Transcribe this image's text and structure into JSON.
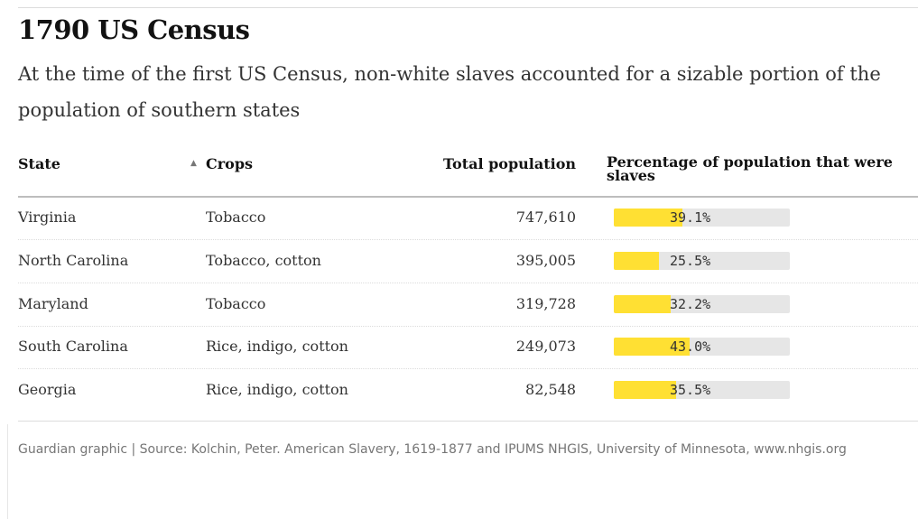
{
  "title": "1790 US Census",
  "subtitle": "At the time of the first US Census, non-white slaves accounted for a sizable portion of the population of southern states",
  "table": {
    "columns": [
      "State",
      "Crops",
      "Total population",
      "Percentage of population that were slaves"
    ],
    "rows": [
      {
        "state": "Virginia",
        "crops": "Tobacco",
        "population": "747,610",
        "percent": 39.1,
        "percent_label": "39.1%"
      },
      {
        "state": "North Carolina",
        "crops": "Tobacco, cotton",
        "population": "395,005",
        "percent": 25.5,
        "percent_label": "25.5%"
      },
      {
        "state": "Maryland",
        "crops": "Tobacco",
        "population": "319,728",
        "percent": 32.2,
        "percent_label": "32.2%"
      },
      {
        "state": "South Carolina",
        "crops": "Rice, indigo, cotton",
        "population": "249,073",
        "percent": 43.0,
        "percent_label": "43.0%"
      },
      {
        "state": "Georgia",
        "crops": "Rice, indigo, cotton",
        "population": "82,548",
        "percent": 35.5,
        "percent_label": "35.5%"
      }
    ]
  },
  "footer": "Guardian graphic | Source: Kolchin, Peter. American Slavery, 1619-1877 and IPUMS NHGIS, University of Minnesota, www.nhgis.org"
}
